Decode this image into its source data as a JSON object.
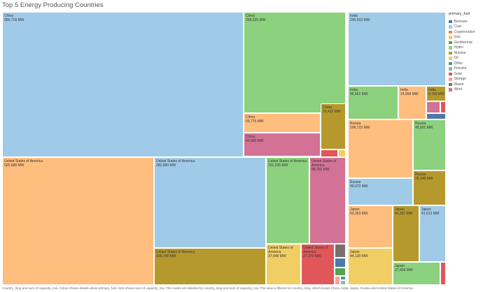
{
  "title": "Top 5 Energy Producing Countries",
  "caption": "Country_long and sum of capacity_mw.  Colour shows details about primary_fuel.  Size shows sum of capacity_mw.  The marks are labelled by country_long and sum of capacity_mw. The view is filtered on country_long, which keeps China, India, Japan, Russia and United States of America.",
  "legend_title": "primary_fuel",
  "fuels": [
    {
      "name": "Biomass",
      "color": "#4e79a7"
    },
    {
      "name": "Coal",
      "color": "#a0cbe8"
    },
    {
      "name": "Cogeneration",
      "color": "#f28e2b"
    },
    {
      "name": "Gas",
      "color": "#ffbe7d"
    },
    {
      "name": "Geothermal",
      "color": "#59a14f"
    },
    {
      "name": "Hydro",
      "color": "#8cd17d"
    },
    {
      "name": "Nuclear",
      "color": "#b6992d"
    },
    {
      "name": "Oil",
      "color": "#f1ce63"
    },
    {
      "name": "Other",
      "color": "#499894"
    },
    {
      "name": "Petcoke",
      "color": "#86bcb6"
    },
    {
      "name": "Solar",
      "color": "#e15759"
    },
    {
      "name": "Storage",
      "color": "#ff9d9a"
    },
    {
      "name": "Waste",
      "color": "#79706e"
    },
    {
      "name": "Wind",
      "color": "#d37295"
    }
  ],
  "chart_data": {
    "type": "treemap",
    "title": "Top 5 Energy Producing Countries",
    "size_measure": "sum of capacity_mw",
    "color_dimension": "primary_fuel",
    "countries": [
      {
        "name": "China",
        "fuels": [
          {
            "fuel": "Coal",
            "value": 966718,
            "label": "966,718 MW"
          },
          {
            "fuel": "Hydro",
            "value": 259026,
            "label": "259,026 MW"
          },
          {
            "fuel": "Gas",
            "value": 59776,
            "label": "59,776 MW"
          },
          {
            "fuel": "Nuclear",
            "value": 33432,
            "label": "33,432 MW"
          },
          {
            "fuel": "Wind",
            "value": 50990,
            "label": "50,990 MW"
          },
          {
            "fuel": "Solar",
            "value": null,
            "label": ""
          },
          {
            "fuel": "Oil",
            "value": null,
            "label": ""
          }
        ]
      },
      {
        "name": "United States of America",
        "fuels": [
          {
            "fuel": "Gas",
            "value": 525688,
            "label": "525,688 MW"
          },
          {
            "fuel": "Coal",
            "value": 282990,
            "label": "282,990 MW"
          },
          {
            "fuel": "Hydro",
            "value": 101235,
            "label": "101,235 MW"
          },
          {
            "fuel": "Wind",
            "value": 88332,
            "label": "88,332 MW"
          },
          {
            "fuel": "Nuclear",
            "value": 106148,
            "label": "106,148 MW"
          },
          {
            "fuel": "Oil",
            "value": 37448,
            "label": "37,448 MW"
          },
          {
            "fuel": "Solar",
            "value": 27370,
            "label": "27,370 MW"
          },
          {
            "fuel": "Waste",
            "value": null,
            "label": ""
          },
          {
            "fuel": "Biomass",
            "value": null,
            "label": ""
          },
          {
            "fuel": "Geothermal",
            "value": null,
            "label": ""
          },
          {
            "fuel": "Storage",
            "value": null,
            "label": ""
          },
          {
            "fuel": "Other",
            "value": null,
            "label": ""
          },
          {
            "fuel": "Petcoke",
            "value": null,
            "label": ""
          }
        ]
      },
      {
        "name": "India",
        "fuels": [
          {
            "fuel": "Coal",
            "value": 200503,
            "label": "200,503 MW"
          },
          {
            "fuel": "Hydro",
            "value": 46461,
            "label": "46,461 MW"
          },
          {
            "fuel": "Gas",
            "value": 24999,
            "label": "24,999 MW"
          },
          {
            "fuel": "Nuclear",
            "value": 8780,
            "label": "8,780 MW"
          },
          {
            "fuel": "Wind",
            "value": null,
            "label": ""
          },
          {
            "fuel": "Solar",
            "value": null,
            "label": ""
          },
          {
            "fuel": "Biomass",
            "value": null,
            "label": ""
          }
        ]
      },
      {
        "name": "Russia",
        "fuels": [
          {
            "fuel": "Gas",
            "value": 106723,
            "label": "106,723 MW"
          },
          {
            "fuel": "Hydro",
            "value": 45591,
            "label": "45,591 MW"
          },
          {
            "fuel": "Coal",
            "value": 46072,
            "label": "46,072 MW"
          },
          {
            "fuel": "Nuclear",
            "value": 26148,
            "label": "26,148 MW"
          },
          {
            "fuel": "Oil",
            "value": null,
            "label": ""
          }
        ]
      },
      {
        "name": "Japan",
        "fuels": [
          {
            "fuel": "Gas",
            "value": 53363,
            "label": "53,363 MW"
          },
          {
            "fuel": "Nuclear",
            "value": 42337,
            "label": "42,337 MW"
          },
          {
            "fuel": "Coal",
            "value": 41613,
            "label": "41,613 MW"
          },
          {
            "fuel": "Oil",
            "value": 44120,
            "label": "44,120 MW"
          },
          {
            "fuel": "Hydro",
            "value": 27439,
            "label": "27,439 MW"
          },
          {
            "fuel": "Solar",
            "value": null,
            "label": ""
          }
        ]
      }
    ]
  }
}
